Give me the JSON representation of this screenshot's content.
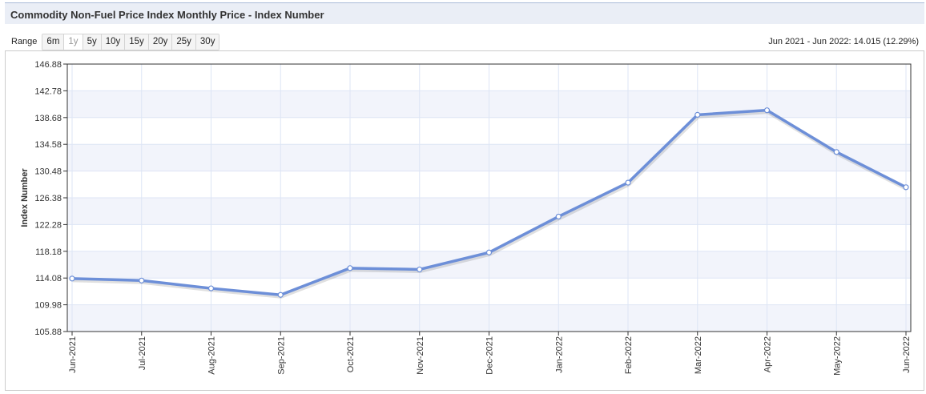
{
  "header": {
    "title": "Commodity Non-Fuel Price Index Monthly Price - Index Number"
  },
  "range": {
    "label": "Range",
    "options": [
      "6m",
      "1y",
      "5y",
      "10y",
      "15y",
      "20y",
      "25y",
      "30y"
    ],
    "selected": "1y"
  },
  "summary": {
    "change_text": "Jun 2021 - Jun 2022: 14.015 (12.29%)"
  },
  "colors": {
    "line": "#6d8fd8",
    "band": "#f2f4fb",
    "grid": "#dde5f5"
  },
  "chart_data": {
    "type": "line",
    "title": "Commodity Non-Fuel Price Index Monthly Price - Index Number",
    "ylabel": "Index Number",
    "xlabel": "",
    "categories": [
      "Jun-2021",
      "Jul-2021",
      "Aug-2021",
      "Sep-2021",
      "Oct-2021",
      "Nov-2021",
      "Dec-2021",
      "Jan-2022",
      "Feb-2022",
      "Mar-2022",
      "Apr-2022",
      "May-2022",
      "Jun-2022"
    ],
    "series": [
      {
        "values": [
          114.0,
          113.7,
          112.5,
          111.5,
          115.6,
          115.4,
          118.0,
          123.5,
          128.7,
          139.1,
          139.8,
          133.4,
          128.0
        ]
      }
    ],
    "ylim": [
      105.88,
      146.88
    ],
    "yticks": [
      "105.88",
      "109.98",
      "114.08",
      "118.18",
      "122.28",
      "126.38",
      "130.48",
      "134.58",
      "138.68",
      "142.78",
      "146.88"
    ],
    "grid": true,
    "legend": "none"
  }
}
